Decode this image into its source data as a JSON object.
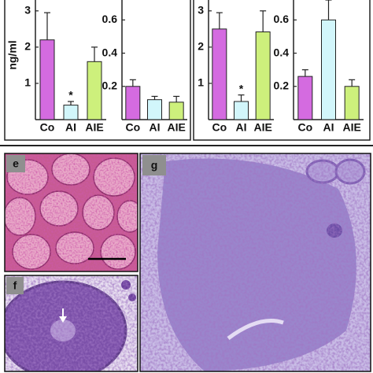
{
  "chart_data": [
    {
      "type": "bar",
      "y_label": "ng/ml",
      "categories": [
        "Co",
        "AI",
        "AIE"
      ],
      "values": [
        2.2,
        0.4,
        1.6
      ],
      "errors": [
        0.75,
        0.1,
        0.4
      ],
      "colors": [
        "#d46be0",
        "#d2f6fb",
        "#cdf07c"
      ],
      "ylim": [
        0,
        3.3
      ],
      "yticks": [
        1,
        2,
        3
      ],
      "annotations": [
        {
          "text": "*",
          "category": "AI"
        }
      ]
    },
    {
      "type": "bar",
      "categories": [
        "Co",
        "AI",
        "AIE"
      ],
      "values": [
        0.2,
        0.12,
        0.105
      ],
      "errors": [
        0.04,
        0.02,
        0.035
      ],
      "colors": [
        "#d46be0",
        "#d2f6fb",
        "#cdf07c"
      ],
      "ylim": [
        0,
        0.72
      ],
      "yticks": [
        0.2,
        0.4,
        0.6
      ]
    },
    {
      "type": "bar",
      "categories": [
        "Co",
        "AI",
        "AIE"
      ],
      "values": [
        2.5,
        0.5,
        2.42
      ],
      "errors": [
        0.45,
        0.18,
        0.58
      ],
      "colors": [
        "#d46be0",
        "#d2f6fb",
        "#cdf07c"
      ],
      "ylim": [
        0,
        3.3
      ],
      "yticks": [
        1,
        2,
        3
      ],
      "annotations": [
        {
          "text": "*",
          "category": "AI"
        }
      ]
    },
    {
      "type": "bar",
      "categories": [
        "Co",
        "AI",
        "AIE"
      ],
      "values": [
        0.26,
        0.6,
        0.2
      ],
      "errors": [
        0.04,
        0.12,
        0.04
      ],
      "colors": [
        "#d46be0",
        "#d2f6fb",
        "#cdf07c"
      ],
      "ylim": [
        0,
        0.72
      ],
      "yticks": [
        0.2,
        0.4,
        0.6
      ]
    }
  ],
  "panel_labels": [
    "e",
    "f",
    "g"
  ]
}
